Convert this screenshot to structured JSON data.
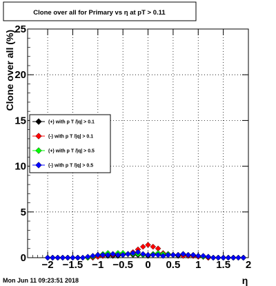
{
  "chart_data": {
    "type": "scatter",
    "title": "Clone  over all for Primary vs   η at pT > 0.11",
    "xlabel": "η",
    "ylabel": "Clone  over all (%)",
    "xlim": [
      -2.4,
      2.0
    ],
    "ylim": [
      0,
      25
    ],
    "x_ticks": [
      -2,
      -1.5,
      -1,
      -0.5,
      0,
      0.5,
      1,
      1.5,
      2
    ],
    "x_tick_labels": [
      "−2",
      "−1.5",
      "−1",
      "−0.5",
      "0",
      "0.5",
      "1",
      "1.5",
      "2"
    ],
    "y_ticks": [
      0,
      5,
      10,
      15,
      20,
      25
    ],
    "y_tick_labels": [
      "0",
      "5",
      "10",
      "15",
      "20",
      "25"
    ],
    "grid": true,
    "legend_position": "left",
    "series": [
      {
        "name": "(+) with p T /|q| > 0.1",
        "color": "#000000",
        "x": [
          -2.0,
          -1.9,
          -1.8,
          -1.7,
          -1.6,
          -1.5,
          -1.4,
          -1.3,
          -1.2,
          -1.1,
          -1.0,
          -0.9,
          -0.8,
          -0.7,
          -0.6,
          -0.5,
          -0.4,
          -0.3,
          -0.2,
          -0.1,
          0.0,
          0.1,
          0.2,
          0.3,
          0.4,
          0.5,
          0.6,
          0.7,
          0.8,
          0.9,
          1.0,
          1.1,
          1.2,
          1.3,
          1.4,
          1.5,
          1.6,
          1.7,
          1.8,
          1.9
        ],
        "y": [
          0,
          0,
          0,
          0,
          0,
          0,
          0,
          0,
          0,
          0,
          0.1,
          0.2,
          0.2,
          0.2,
          0.2,
          0.3,
          0.4,
          0.3,
          0.3,
          0.3,
          0.2,
          0.4,
          0.4,
          0.3,
          0.3,
          0.3,
          0.2,
          0.3,
          0.2,
          0.2,
          0.2,
          0.1,
          0,
          0,
          0,
          0,
          0,
          0,
          0,
          0
        ]
      },
      {
        "name": "(-) with p T /|q| > 0.1",
        "color": "#ff0000",
        "x": [
          -2.0,
          -1.9,
          -1.8,
          -1.7,
          -1.6,
          -1.5,
          -1.4,
          -1.3,
          -1.2,
          -1.1,
          -1.0,
          -0.9,
          -0.8,
          -0.7,
          -0.6,
          -0.5,
          -0.4,
          -0.3,
          -0.2,
          -0.1,
          0.0,
          0.1,
          0.2,
          0.3,
          0.4,
          0.5,
          0.6,
          0.7,
          0.8,
          0.9,
          1.0,
          1.1,
          1.2,
          1.3,
          1.4,
          1.5,
          1.6,
          1.7,
          1.8,
          1.9
        ],
        "y": [
          0,
          0,
          0,
          0,
          0,
          0,
          0,
          0,
          0,
          0,
          0.1,
          0.2,
          0.3,
          0.3,
          0.3,
          0.4,
          0.4,
          0.6,
          0.9,
          1.2,
          1.4,
          1.2,
          1.0,
          0.5,
          0.4,
          0.3,
          0.3,
          0.2,
          0.2,
          0.2,
          0.1,
          0.1,
          0,
          0,
          0,
          0,
          0,
          0,
          0,
          0
        ]
      },
      {
        "name": "(+) with p T /|q| > 0.5",
        "color": "#00ff00",
        "x": [
          -2.0,
          -1.9,
          -1.8,
          -1.7,
          -1.6,
          -1.5,
          -1.4,
          -1.3,
          -1.2,
          -1.1,
          -1.0,
          -0.9,
          -0.8,
          -0.7,
          -0.6,
          -0.5,
          -0.4,
          -0.3,
          -0.2,
          -0.1,
          0.0,
          0.1,
          0.2,
          0.3,
          0.4,
          0.5,
          0.6,
          0.7,
          0.8,
          0.9,
          1.0,
          1.1,
          1.2,
          1.3,
          1.4,
          1.5,
          1.6,
          1.7,
          1.8,
          1.9
        ],
        "y": [
          0,
          0,
          0,
          0,
          0,
          0,
          0,
          0,
          0,
          0.1,
          0.3,
          0.4,
          0.5,
          0.4,
          0.5,
          0.5,
          0.4,
          0.4,
          0.4,
          0.3,
          0.3,
          0.4,
          0.5,
          0.4,
          0.4,
          0.3,
          0.3,
          0.4,
          0.3,
          0.3,
          0.2,
          0.1,
          0.1,
          0,
          0,
          0,
          0,
          0,
          0,
          0
        ]
      },
      {
        "name": "(-) with p T /|q| > 0.5",
        "color": "#0000ff",
        "x": [
          -2.0,
          -1.9,
          -1.8,
          -1.7,
          -1.6,
          -1.5,
          -1.4,
          -1.3,
          -1.2,
          -1.1,
          -1.0,
          -0.9,
          -0.8,
          -0.7,
          -0.6,
          -0.5,
          -0.4,
          -0.3,
          -0.2,
          -0.1,
          0.0,
          0.1,
          0.2,
          0.3,
          0.4,
          0.5,
          0.6,
          0.7,
          0.8,
          0.9,
          1.0,
          1.1,
          1.2,
          1.3,
          1.4,
          1.5,
          1.6,
          1.7,
          1.8,
          1.9
        ],
        "y": [
          0,
          0,
          0,
          0,
          0,
          0,
          0,
          0,
          0.1,
          0.2,
          0.3,
          0.3,
          0.3,
          0.4,
          0.3,
          0.3,
          0.4,
          0.5,
          0.6,
          0.4,
          0.3,
          0.3,
          0.3,
          0.2,
          0.3,
          0.3,
          0.3,
          0.4,
          0.3,
          0.3,
          0.2,
          0.2,
          0.1,
          0,
          0,
          0,
          0,
          0,
          0,
          0
        ]
      }
    ]
  },
  "footer": {
    "timestamp": "Mon Jun 11 09:23:51 2018"
  }
}
